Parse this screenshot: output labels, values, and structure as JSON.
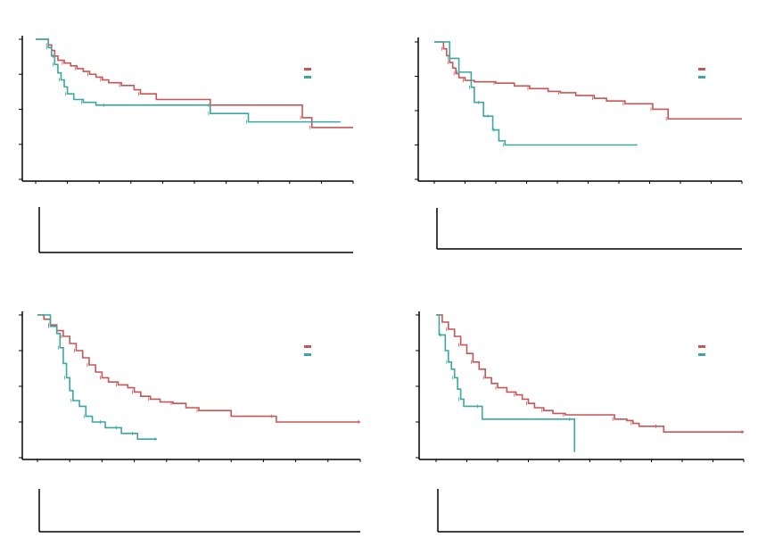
{
  "colors": {
    "group_a": "#c85555",
    "group_b": "#3aa7a5",
    "axis": "#000000"
  },
  "chart_data": [
    {
      "type": "line",
      "title": "",
      "xlabel": "",
      "ylabel": "",
      "xlim": [
        0,
        100
      ],
      "ylim": [
        0,
        1
      ],
      "legend": "top-right",
      "series": [
        {
          "values": [
            [
              0,
              1.0
            ],
            [
              3,
              1.0
            ],
            [
              4,
              0.96
            ],
            [
              5,
              0.92
            ],
            [
              6,
              0.88
            ],
            [
              7,
              0.85
            ],
            [
              9,
              0.83
            ],
            [
              11,
              0.81
            ],
            [
              13,
              0.79
            ],
            [
              15,
              0.77
            ],
            [
              17,
              0.75
            ],
            [
              19,
              0.73
            ],
            [
              21,
              0.71
            ],
            [
              23,
              0.69
            ],
            [
              27,
              0.67
            ],
            [
              31,
              0.64
            ],
            [
              33,
              0.61
            ],
            [
              38,
              0.57
            ],
            [
              55,
              0.53
            ],
            [
              80,
              0.53
            ],
            [
              84,
              0.44
            ],
            [
              86,
              0.44
            ],
            [
              87,
              0.37
            ],
            [
              100,
              0.37
            ]
          ]
        },
        {
          "values": [
            [
              0,
              1.0
            ],
            [
              3,
              1.0
            ],
            [
              4,
              0.94
            ],
            [
              5,
              0.88
            ],
            [
              6,
              0.82
            ],
            [
              7,
              0.76
            ],
            [
              8,
              0.71
            ],
            [
              9,
              0.66
            ],
            [
              10,
              0.61
            ],
            [
              12,
              0.57
            ],
            [
              15,
              0.55
            ],
            [
              19,
              0.53
            ],
            [
              22,
              0.53
            ],
            [
              52,
              0.53
            ],
            [
              55,
              0.47
            ],
            [
              66,
              0.47
            ],
            [
              67,
              0.41
            ],
            [
              96,
              0.41
            ]
          ]
        }
      ]
    },
    {
      "type": "line",
      "title": "",
      "xlabel": "",
      "ylabel": "",
      "xlim": [
        0,
        100
      ],
      "ylim": [
        0,
        1
      ],
      "legend": "top-right",
      "series": [
        {
          "values": [
            [
              0,
              1.0
            ],
            [
              2,
              1.0
            ],
            [
              3,
              0.95
            ],
            [
              4,
              0.9
            ],
            [
              5,
              0.85
            ],
            [
              6,
              0.81
            ],
            [
              7,
              0.77
            ],
            [
              8,
              0.74
            ],
            [
              10,
              0.72
            ],
            [
              13,
              0.71
            ],
            [
              20,
              0.7
            ],
            [
              26,
              0.68
            ],
            [
              31,
              0.66
            ],
            [
              37,
              0.64
            ],
            [
              41,
              0.63
            ],
            [
              46,
              0.61
            ],
            [
              52,
              0.59
            ],
            [
              56,
              0.57
            ],
            [
              62,
              0.55
            ],
            [
              69,
              0.55
            ],
            [
              71,
              0.51
            ],
            [
              75,
              0.51
            ],
            [
              76,
              0.44
            ],
            [
              100,
              0.44
            ]
          ]
        },
        {
          "values": [
            [
              0,
              1.0
            ],
            [
              4,
              1.0
            ],
            [
              5,
              0.88
            ],
            [
              7,
              0.88
            ],
            [
              8,
              0.78
            ],
            [
              11,
              0.78
            ],
            [
              12,
              0.67
            ],
            [
              13,
              0.56
            ],
            [
              15,
              0.56
            ],
            [
              16,
              0.46
            ],
            [
              18,
              0.46
            ],
            [
              19,
              0.36
            ],
            [
              20,
              0.36
            ],
            [
              21,
              0.28
            ],
            [
              23,
              0.25
            ],
            [
              66,
              0.25
            ]
          ]
        }
      ]
    },
    {
      "type": "line",
      "title": "",
      "xlabel": "",
      "ylabel": "",
      "xlim": [
        0,
        100
      ],
      "ylim": [
        0,
        1
      ],
      "legend": "top-right",
      "series": [
        {
          "values": [
            [
              0,
              1.0
            ],
            [
              2,
              0.97
            ],
            [
              4,
              0.93
            ],
            [
              6,
              0.89
            ],
            [
              8,
              0.85
            ],
            [
              10,
              0.8
            ],
            [
              12,
              0.75
            ],
            [
              14,
              0.7
            ],
            [
              16,
              0.65
            ],
            [
              18,
              0.6
            ],
            [
              20,
              0.56
            ],
            [
              22,
              0.53
            ],
            [
              25,
              0.51
            ],
            [
              28,
              0.49
            ],
            [
              30,
              0.46
            ],
            [
              32,
              0.43
            ],
            [
              35,
              0.41
            ],
            [
              38,
              0.39
            ],
            [
              42,
              0.38
            ],
            [
              46,
              0.35
            ],
            [
              50,
              0.33
            ],
            [
              60,
              0.29
            ],
            [
              73,
              0.29
            ],
            [
              74,
              0.25
            ],
            [
              100,
              0.25
            ]
          ]
        },
        {
          "values": [
            [
              0,
              1.0
            ],
            [
              2,
              1.0
            ],
            [
              4,
              0.92
            ],
            [
              6,
              0.87
            ],
            [
              7,
              0.77
            ],
            [
              8,
              0.66
            ],
            [
              9,
              0.56
            ],
            [
              10,
              0.47
            ],
            [
              11,
              0.4
            ],
            [
              13,
              0.36
            ],
            [
              15,
              0.29
            ],
            [
              17,
              0.25
            ],
            [
              20,
              0.25
            ],
            [
              21,
              0.21
            ],
            [
              25,
              0.21
            ],
            [
              26,
              0.17
            ],
            [
              30,
              0.17
            ],
            [
              31,
              0.13
            ],
            [
              37,
              0.13
            ]
          ]
        }
      ]
    },
    {
      "type": "line",
      "title": "",
      "xlabel": "",
      "ylabel": "",
      "xlim": [
        0,
        100
      ],
      "ylim": [
        0,
        1
      ],
      "legend": "top-right",
      "series": [
        {
          "values": [
            [
              0,
              1.0
            ],
            [
              2,
              0.95
            ],
            [
              4,
              0.9
            ],
            [
              6,
              0.85
            ],
            [
              8,
              0.79
            ],
            [
              10,
              0.73
            ],
            [
              12,
              0.67
            ],
            [
              14,
              0.62
            ],
            [
              16,
              0.56
            ],
            [
              18,
              0.52
            ],
            [
              20,
              0.49
            ],
            [
              23,
              0.46
            ],
            [
              26,
              0.44
            ],
            [
              28,
              0.41
            ],
            [
              30,
              0.38
            ],
            [
              32,
              0.35
            ],
            [
              35,
              0.33
            ],
            [
              38,
              0.31
            ],
            [
              42,
              0.3
            ],
            [
              56,
              0.3
            ],
            [
              58,
              0.27
            ],
            [
              62,
              0.26
            ],
            [
              64,
              0.24
            ],
            [
              66,
              0.22
            ],
            [
              72,
              0.22
            ],
            [
              74,
              0.18
            ],
            [
              100,
              0.18
            ]
          ]
        },
        {
          "values": [
            [
              0,
              1.0
            ],
            [
              1,
              0.86
            ],
            [
              2,
              0.86
            ],
            [
              3,
              0.75
            ],
            [
              4,
              0.67
            ],
            [
              5,
              0.62
            ],
            [
              6,
              0.56
            ],
            [
              7,
              0.48
            ],
            [
              8,
              0.41
            ],
            [
              9,
              0.36
            ],
            [
              14,
              0.36
            ],
            [
              15,
              0.27
            ],
            [
              44,
              0.27
            ],
            [
              45,
              0.04
            ]
          ]
        }
      ]
    }
  ],
  "panels": [
    {
      "legend": [
        "",
        ""
      ]
    },
    {
      "legend": [
        "",
        ""
      ]
    },
    {
      "legend": [
        "",
        ""
      ]
    },
    {
      "legend": [
        "",
        ""
      ]
    }
  ]
}
